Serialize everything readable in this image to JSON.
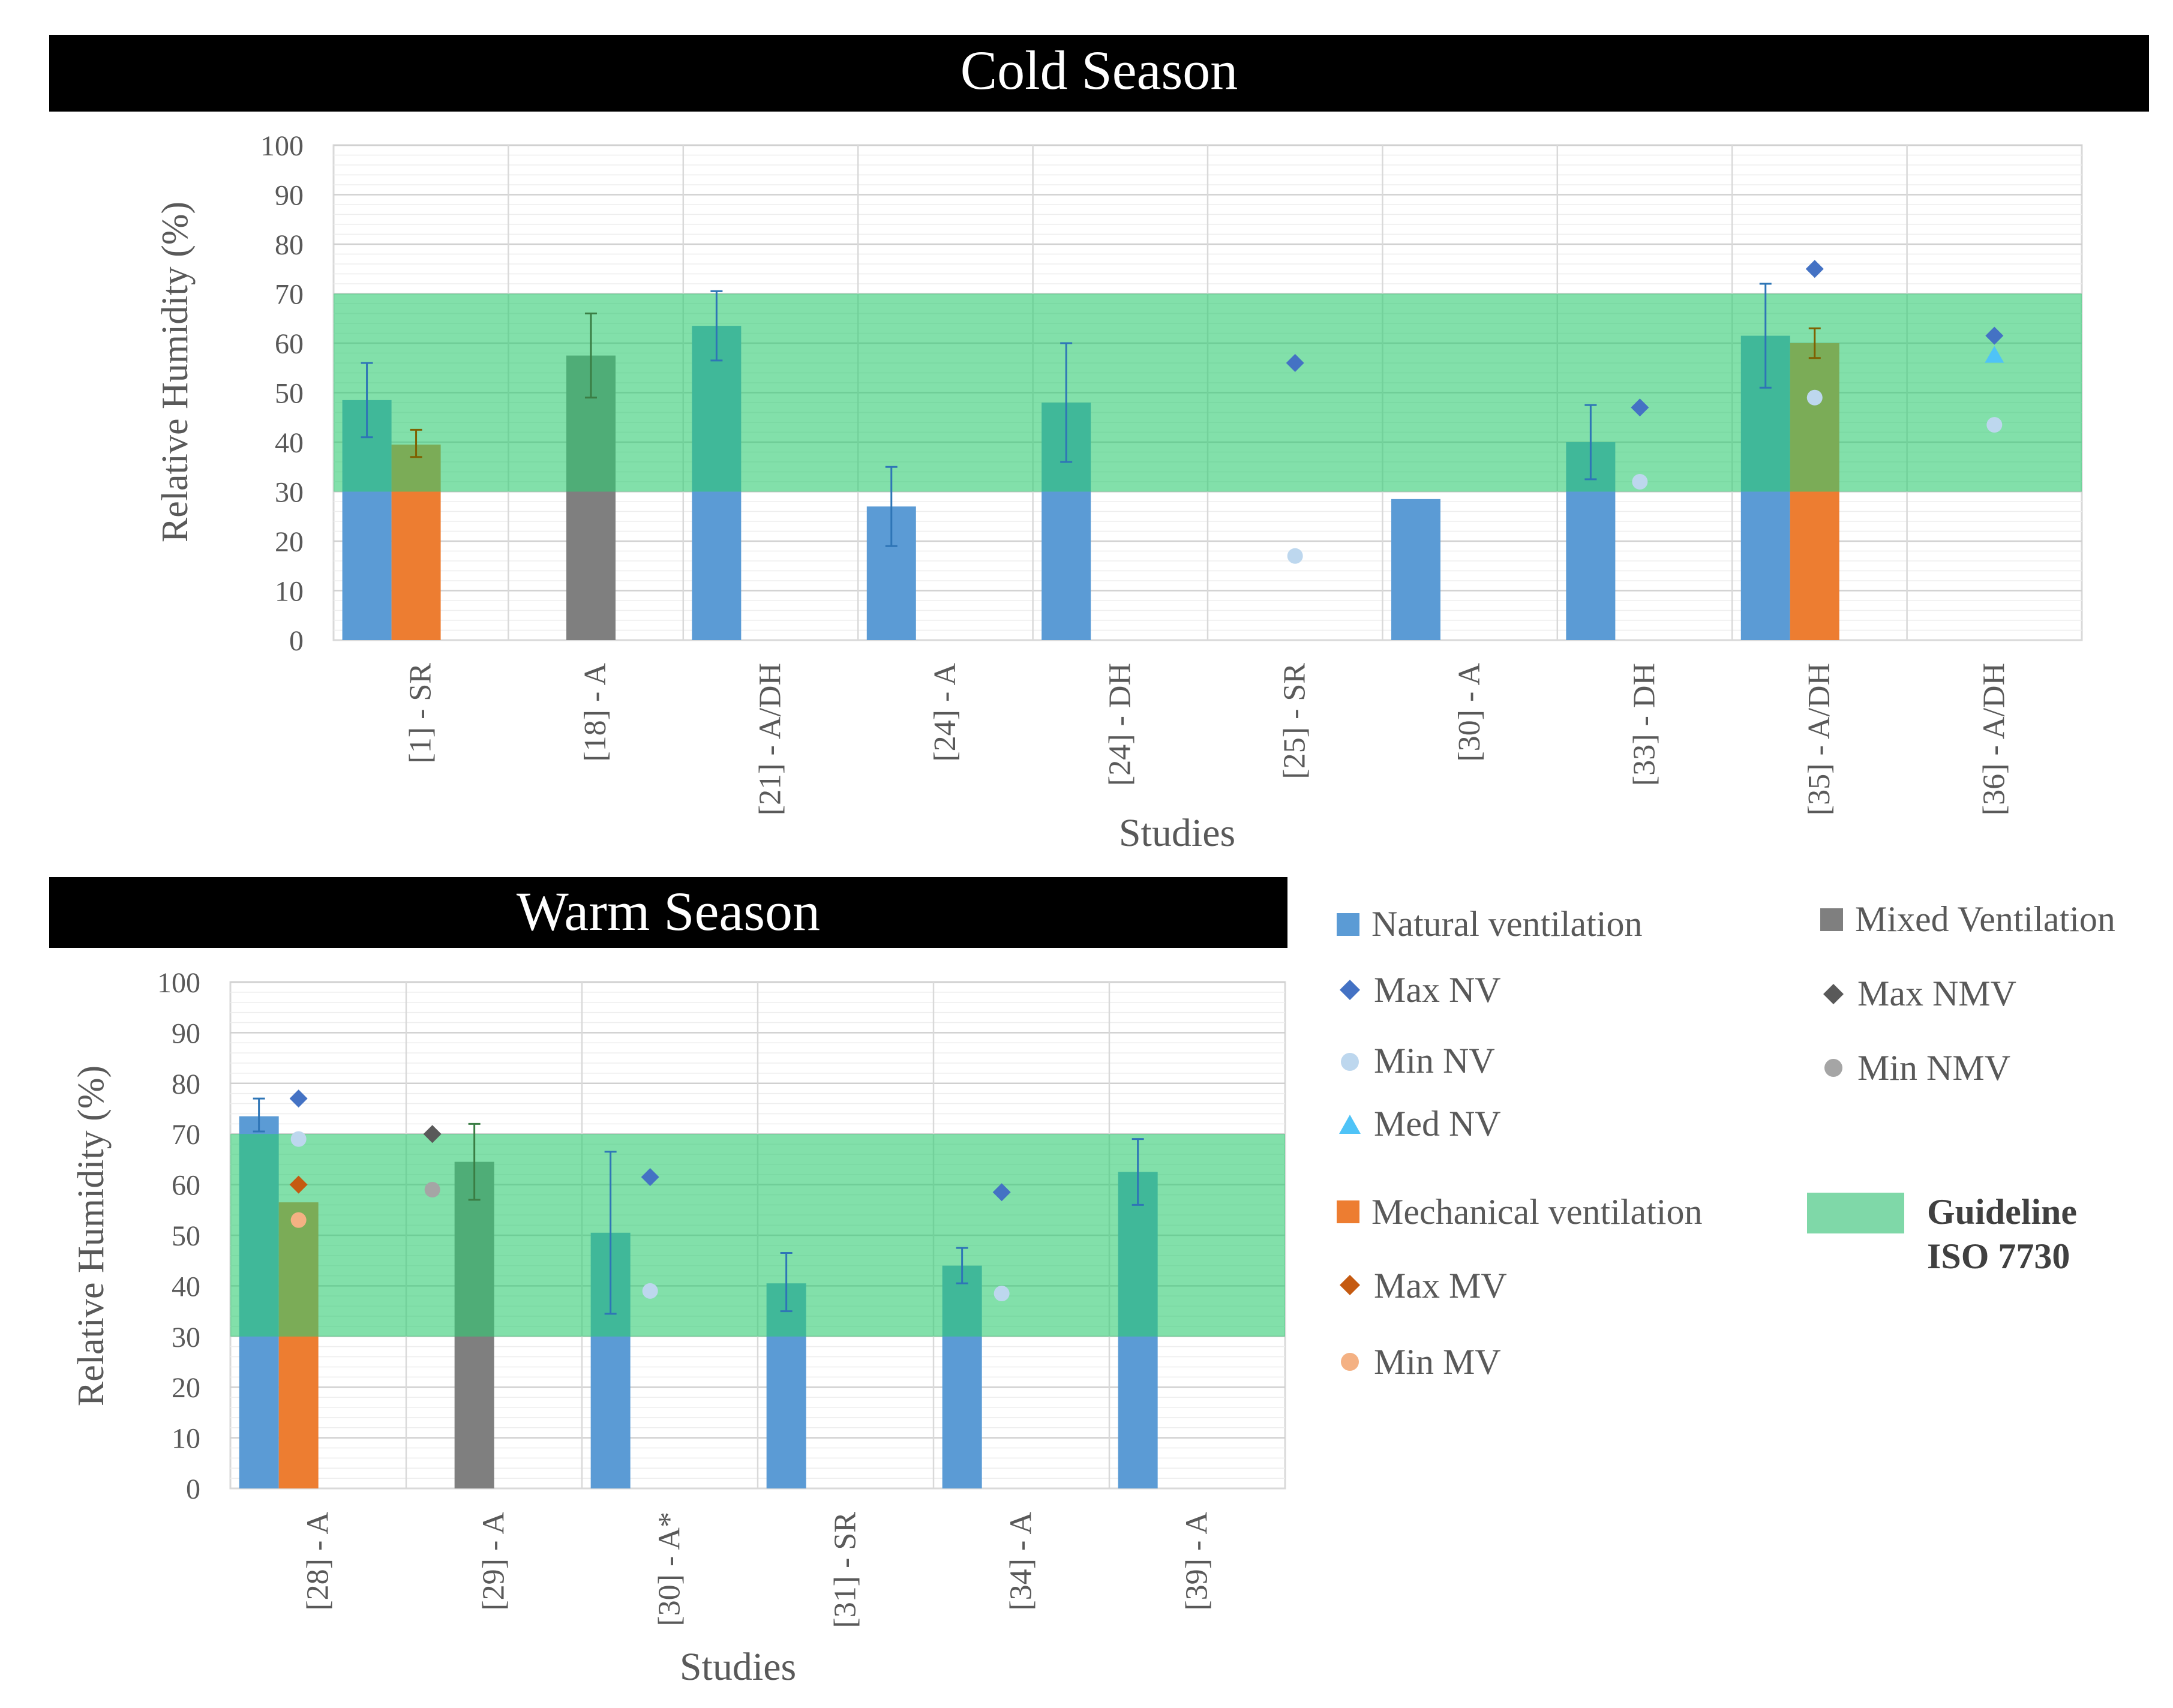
{
  "colors": {
    "natural": "#5B9BD5",
    "mechanical": "#ED7D31",
    "mixed": "#7F7F7F",
    "max_nv": "#4472C4",
    "min_nv": "#BDD7EE",
    "med_nv": "#4FC3F7",
    "max_mv": "#C55A11",
    "min_mv": "#F4B183",
    "max_nmv": "#595959",
    "min_nmv": "#A5A5A5",
    "guideline": "#2ECC71",
    "errorbar": "#2E75B6"
  },
  "legend": {
    "natural": "Natural ventilation",
    "max_nv": "Max NV",
    "min_nv": "Min NV",
    "med_nv": "Med NV",
    "mechanical": "Mechanical ventilation",
    "max_mv": "Max MV",
    "min_mv": "Min MV",
    "mixed": "Mixed Ventilation",
    "max_nmv": "Max NMV",
    "min_nmv": "Min NMV",
    "guideline_line1": "Guideline",
    "guideline_line2": "ISO 7730"
  },
  "chart_data": [
    {
      "type": "bar",
      "title": "Cold Season",
      "xlabel": "Studies",
      "ylabel": "Relative Humidity (%)",
      "ylim": [
        0,
        100
      ],
      "yticks": [
        "0",
        "10",
        "20",
        "30",
        "40",
        "50",
        "60",
        "70",
        "80",
        "90",
        "100"
      ],
      "guideline_band": [
        30,
        70
      ],
      "categories": [
        "[1] - SR",
        "[18] - A",
        "[21] - A/DH",
        "[24] - A",
        "[24] - DH",
        "[25] - SR",
        "[30] - A",
        "[33] - DH",
        "[35] - A/DH",
        "[36] - A/DH"
      ],
      "bars": [
        {
          "cat": 0,
          "kind": "natural",
          "value": 48.5,
          "err_low": 41,
          "err_high": 56
        },
        {
          "cat": 0,
          "kind": "mechanical",
          "value": 39.5,
          "err_low": 37,
          "err_high": 42.5
        },
        {
          "cat": 1,
          "kind": "mixed",
          "value": 57.5,
          "err_low": 49,
          "err_high": 66
        },
        {
          "cat": 2,
          "kind": "natural",
          "value": 63.5,
          "err_low": 56.5,
          "err_high": 70.5
        },
        {
          "cat": 3,
          "kind": "natural",
          "value": 27,
          "err_low": 19,
          "err_high": 35
        },
        {
          "cat": 4,
          "kind": "natural",
          "value": 48,
          "err_low": 36,
          "err_high": 60
        },
        {
          "cat": 6,
          "kind": "natural",
          "value": 28.5
        },
        {
          "cat": 7,
          "kind": "natural",
          "value": 40,
          "err_low": 32.5,
          "err_high": 47.5
        },
        {
          "cat": 8,
          "kind": "natural",
          "value": 61.5,
          "err_low": 51,
          "err_high": 72
        },
        {
          "cat": 8,
          "kind": "mechanical",
          "value": 60,
          "err_low": 57,
          "err_high": 63
        }
      ],
      "markers": [
        {
          "cat": 5,
          "kind": "max_nv",
          "value": 56
        },
        {
          "cat": 5,
          "kind": "min_nv",
          "value": 17
        },
        {
          "cat": 7,
          "kind": "max_nv",
          "value": 47
        },
        {
          "cat": 7,
          "kind": "min_nv",
          "value": 32
        },
        {
          "cat": 8,
          "kind": "max_nv",
          "value": 75
        },
        {
          "cat": 8,
          "kind": "min_nv",
          "value": 49
        },
        {
          "cat": 9,
          "kind": "max_nv",
          "value": 61.5
        },
        {
          "cat": 9,
          "kind": "med_nv",
          "value": 57.5
        },
        {
          "cat": 9,
          "kind": "min_nv",
          "value": 43.5
        }
      ]
    },
    {
      "type": "bar",
      "title": "Warm Season",
      "xlabel": "Studies",
      "ylabel": "Relative Humidity (%)",
      "ylim": [
        0,
        100
      ],
      "yticks": [
        "0",
        "10",
        "20",
        "30",
        "40",
        "50",
        "60",
        "70",
        "80",
        "90",
        "100"
      ],
      "guideline_band": [
        30,
        70
      ],
      "categories": [
        "[28] - A",
        "[29] - A",
        "[30] - A*",
        "[31] - SR",
        "[34] - A",
        "[39] - A"
      ],
      "bars": [
        {
          "cat": 0,
          "kind": "natural",
          "value": 73.5,
          "err_low": 70.5,
          "err_high": 77
        },
        {
          "cat": 0,
          "kind": "mechanical",
          "value": 56.5
        },
        {
          "cat": 1,
          "kind": "mixed",
          "value": 64.5,
          "err_low": 57,
          "err_high": 72
        },
        {
          "cat": 2,
          "kind": "natural",
          "value": 50.5,
          "err_low": 34.5,
          "err_high": 66.5
        },
        {
          "cat": 3,
          "kind": "natural",
          "value": 40.5,
          "err_low": 35,
          "err_high": 46.5
        },
        {
          "cat": 4,
          "kind": "natural",
          "value": 44,
          "err_low": 40.5,
          "err_high": 47.5
        },
        {
          "cat": 5,
          "kind": "natural",
          "value": 62.5,
          "err_low": 56,
          "err_high": 69
        }
      ],
      "markers": [
        {
          "cat": 0,
          "kind": "max_nv",
          "value": 77
        },
        {
          "cat": 0,
          "kind": "min_nv",
          "value": 69
        },
        {
          "cat": 0,
          "kind": "max_mv",
          "value": 60
        },
        {
          "cat": 0,
          "kind": "min_mv",
          "value": 53
        },
        {
          "cat": 1,
          "kind": "max_nmv",
          "value": 70
        },
        {
          "cat": 1,
          "kind": "min_nmv",
          "value": 59
        },
        {
          "cat": 2,
          "kind": "max_nv",
          "value": 61.5
        },
        {
          "cat": 2,
          "kind": "min_nv",
          "value": 39
        },
        {
          "cat": 4,
          "kind": "max_nv",
          "value": 58.5
        },
        {
          "cat": 4,
          "kind": "min_nv",
          "value": 38.5
        }
      ]
    }
  ]
}
